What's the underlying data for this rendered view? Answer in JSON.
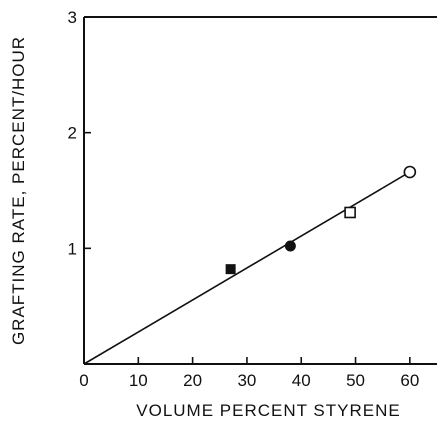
{
  "chart_data": {
    "type": "scatter",
    "title": "",
    "xlabel": "VOLUME PERCENT STYRENE",
    "ylabel": "GRAFTING RATE, PERCENT/HOUR",
    "xlim": [
      0,
      65
    ],
    "ylim": [
      0,
      3
    ],
    "x_ticks": [
      0,
      10,
      20,
      30,
      40,
      50,
      60
    ],
    "x_tick_labels": [
      "0",
      "10",
      "20",
      "30",
      "40",
      "50",
      "60"
    ],
    "y_ticks": [
      1,
      2,
      3
    ],
    "y_tick_labels": [
      "1",
      "2",
      "3"
    ],
    "grid": false,
    "series": [
      {
        "marker": "filled-square",
        "color": "#111111",
        "points": [
          {
            "x": 27,
            "y": 0.82
          }
        ]
      },
      {
        "marker": "filled-circle",
        "color": "#111111",
        "points": [
          {
            "x": 38,
            "y": 1.02
          }
        ]
      },
      {
        "marker": "open-square",
        "color": "#111111",
        "points": [
          {
            "x": 49,
            "y": 1.31
          }
        ]
      },
      {
        "marker": "open-circle",
        "color": "#111111",
        "points": [
          {
            "x": 60,
            "y": 1.66
          }
        ]
      }
    ],
    "fit_line": {
      "x": [
        0,
        60
      ],
      "y": [
        0,
        1.66
      ],
      "color": "#111111"
    }
  }
}
